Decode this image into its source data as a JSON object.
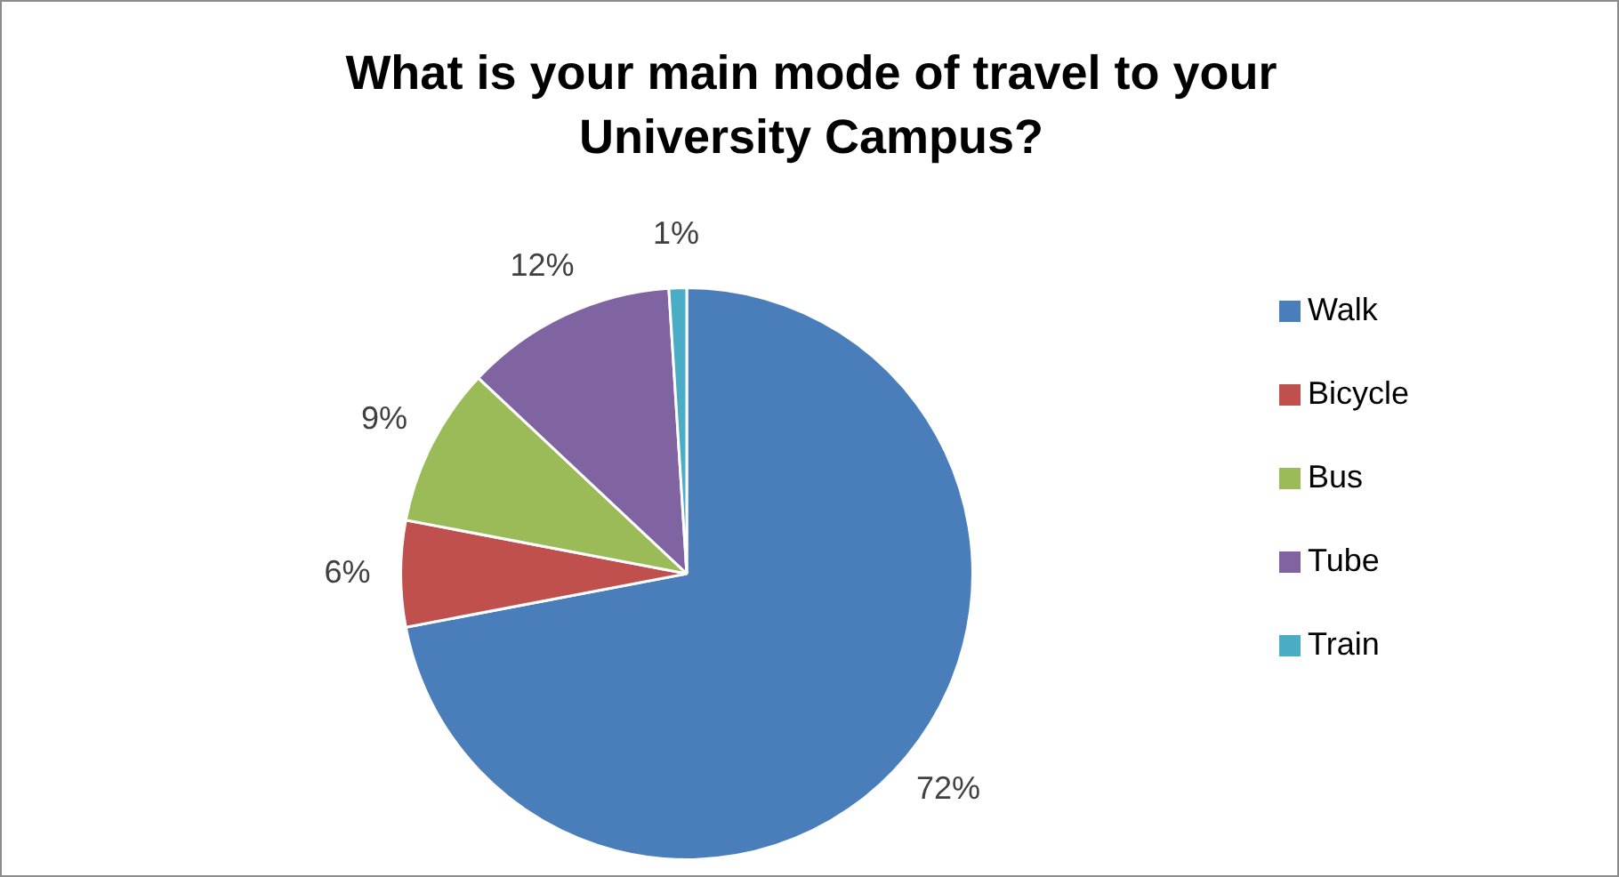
{
  "chart_data": {
    "type": "pie",
    "title": "What is your main mode of travel to your University Campus?",
    "categories": [
      "Walk",
      "Bicycle",
      "Bus",
      "Tube",
      "Train"
    ],
    "values": [
      72,
      6,
      9,
      12,
      1
    ],
    "value_labels": [
      "72%",
      "6%",
      "9%",
      "12%",
      "1%"
    ],
    "colors": [
      "#4a7ebb",
      "#c0504d",
      "#9bbb59",
      "#8064a2",
      "#4bacc6"
    ],
    "legend": "right"
  }
}
